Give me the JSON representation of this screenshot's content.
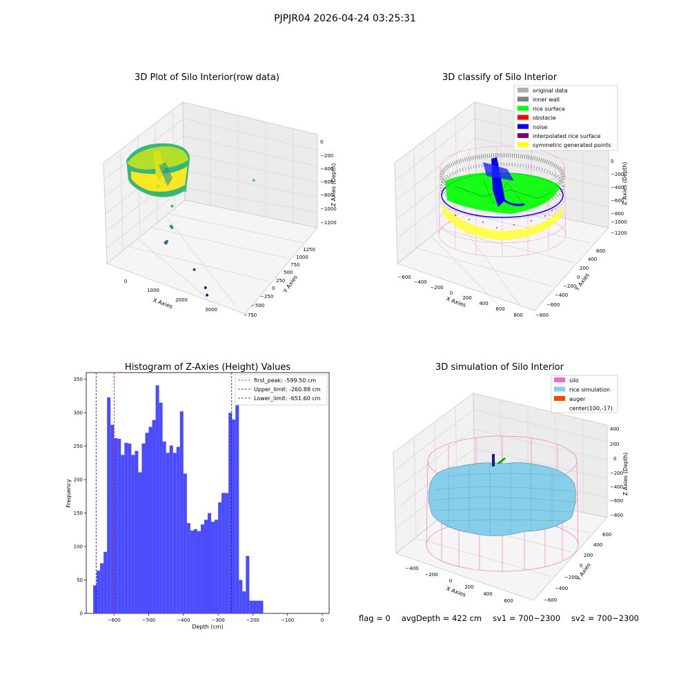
{
  "suptitle": "PJPJR04 2026-04-24 03:25:31",
  "status": {
    "flag": "flag = 0",
    "avg_depth": "avgDepth = 422 cm",
    "sv1": "sv1 = 700~2300",
    "sv2": "sv2 = 700~2300"
  },
  "chart_data": [
    {
      "type": "scatter",
      "title": "3D Plot of Silo Interior(row data)",
      "xlabel": "X Axies",
      "ylabel": "Y Axies",
      "zlabel": "Z Axies (Depth)",
      "xticks": [
        "0",
        "1000",
        "2000",
        "3000"
      ],
      "yticks": [
        "−750",
        "−500",
        "−250",
        "0",
        "250",
        "500",
        "750",
        "1000",
        "1250"
      ],
      "zticks": [
        "0",
        "−200",
        "−400",
        "−600",
        "−800",
        "−1000",
        "−1200"
      ],
      "colormap": "viridis",
      "outlier_points": [
        {
          "x": 700,
          "y": -50,
          "z": -600
        },
        {
          "x": 780,
          "y": 40,
          "z": -580
        },
        {
          "x": 1200,
          "y": 180,
          "z": -700
        },
        {
          "x": 1150,
          "y": -60,
          "z": -780
        },
        {
          "x": 2400,
          "y": 800,
          "z": -700
        },
        {
          "x": 1400,
          "y": -250,
          "z": -900
        },
        {
          "x": 1420,
          "y": -240,
          "z": -920
        },
        {
          "x": 1500,
          "y": -400,
          "z": -1000
        },
        {
          "x": 1480,
          "y": -420,
          "z": -1010
        },
        {
          "x": 1490,
          "y": -410,
          "z": -1020
        },
        {
          "x": 2500,
          "y": -500,
          "z": -1150
        },
        {
          "x": 3000,
          "y": -600,
          "z": -1250
        },
        {
          "x": 3200,
          "y": -700,
          "z": -1260
        }
      ]
    },
    {
      "type": "scatter",
      "title": "3D classify of Silo Interior",
      "xlabel": "X Axies",
      "ylabel": "Y Axies",
      "zlabel": "Z Axies (Depth)",
      "xticks": [
        "−600",
        "−400",
        "−200",
        "0",
        "200",
        "400",
        "600",
        "800"
      ],
      "yticks": [
        "−800",
        "−600",
        "−400",
        "−200",
        "0",
        "200",
        "400",
        "600"
      ],
      "zticks": [
        "0",
        "−200",
        "−400",
        "−600",
        "−800",
        "−1000",
        "−1200"
      ],
      "legend": [
        {
          "label": "original data",
          "color": "#b0b0b0"
        },
        {
          "label": "inner wall",
          "color": "#808080"
        },
        {
          "label": "rice surface",
          "color": "#00ff00"
        },
        {
          "label": "obstacle",
          "color": "#ff0000"
        },
        {
          "label": "noise",
          "color": "#0000ff"
        },
        {
          "label": "interpolated rice surface",
          "color": "#800080"
        },
        {
          "label": "symmetric generated points",
          "color": "#ffff00"
        }
      ]
    },
    {
      "type": "bar",
      "title": "Histogram of Z-Axies (Height) Values",
      "xlabel": "Depth (cm)",
      "ylabel": "Frequency",
      "xlim": [
        -680,
        20
      ],
      "ylim": [
        0,
        360
      ],
      "xticks": [
        -600,
        -500,
        -400,
        -300,
        -200,
        -100,
        0
      ],
      "yticks": [
        0,
        50,
        100,
        150,
        200,
        250,
        300,
        350
      ],
      "bar_color": "#4c4cff",
      "bin_edges": [
        -660,
        -650,
        -640,
        -630,
        -620,
        -610,
        -600,
        -590,
        -580,
        -570,
        -560,
        -550,
        -540,
        -530,
        -520,
        -510,
        -500,
        -490,
        -480,
        -470,
        -460,
        -450,
        -440,
        -430,
        -420,
        -410,
        -400,
        -390,
        -380,
        -370,
        -360,
        -350,
        -340,
        -330,
        -320,
        -310,
        -300,
        -290,
        -280,
        -270,
        -260,
        -250,
        -240,
        -230,
        -220,
        -210,
        -200,
        -190,
        -180,
        -170,
        -160,
        -150,
        -140,
        -130,
        -120,
        -110,
        -100,
        -90,
        -80,
        -70,
        -60,
        -50,
        -40,
        -30,
        -20,
        -10,
        0
      ],
      "values": [
        42,
        64,
        75,
        92,
        323,
        282,
        262,
        261,
        237,
        255,
        254,
        237,
        243,
        211,
        254,
        270,
        279,
        289,
        341,
        315,
        257,
        240,
        251,
        240,
        249,
        302,
        209,
        135,
        124,
        126,
        123,
        133,
        140,
        150,
        137,
        140,
        166,
        180,
        180,
        300,
        290,
        340,
        50,
        33,
        86,
        19,
        19,
        19,
        19,
        0,
        0,
        0,
        0,
        0,
        0,
        0,
        0,
        0,
        0,
        0,
        0,
        0,
        0,
        0,
        0,
        0
      ],
      "vlines": [
        {
          "label": "first_peak: -599.50 cm",
          "x": -599.5,
          "color": "#ff0000"
        },
        {
          "label": "Upper_limit: -260.88 cm",
          "x": -260.88,
          "color": "#0000cc"
        },
        {
          "label": "Lower_limit: -651.60 cm",
          "x": -651.6,
          "color": "#0000cc"
        }
      ]
    },
    {
      "type": "area",
      "title": "3D simulation of Silo Interior",
      "xlabel": "X Axies",
      "ylabel": "Y Axies",
      "zlabel": "Z Axies (Depth)",
      "xticks": [
        "−400",
        "−200",
        "0",
        "200",
        "400",
        "600"
      ],
      "yticks": [
        "−600",
        "−400",
        "−200",
        "0",
        "200",
        "400",
        "600"
      ],
      "zticks": [
        "400",
        "200",
        "0",
        "−200",
        "−400",
        "−600",
        "−800"
      ],
      "legend": [
        {
          "label": "silo",
          "color": "#ff69b4"
        },
        {
          "label": "rice simulation",
          "color": "#87ceeb"
        },
        {
          "label": "auger",
          "color": "#ff4500"
        },
        {
          "label": "center(100,-17)",
          "color": ""
        }
      ]
    }
  ]
}
